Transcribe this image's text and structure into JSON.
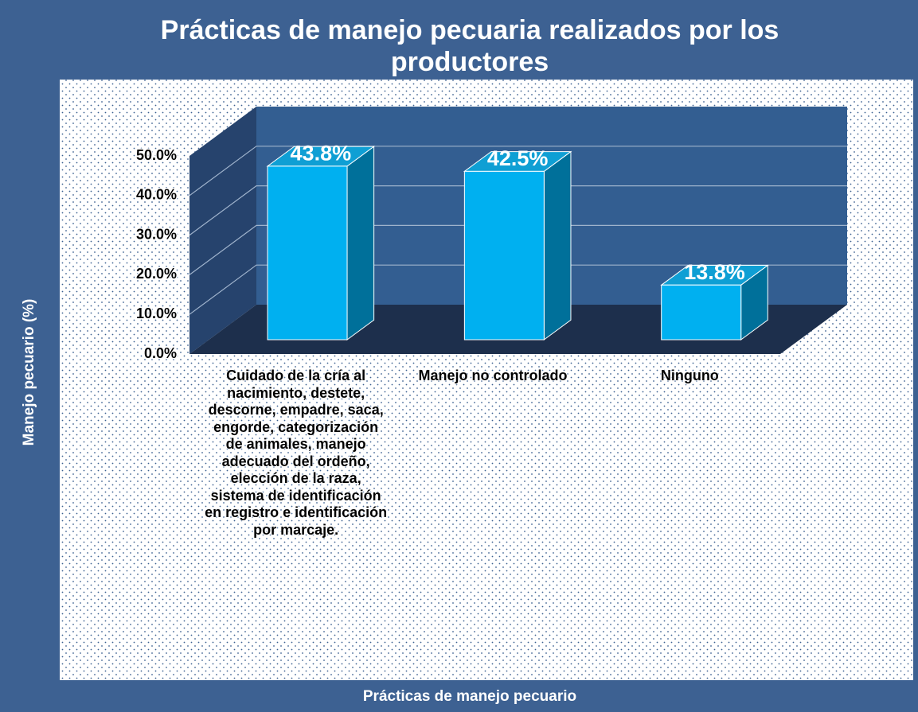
{
  "chart_data": {
    "type": "bar3d",
    "title": "Prácticas de manejo pecuaria realizados por los productores",
    "x_label": "Prácticas de manejo pecuario",
    "y_label": "Manejo pecuario (%)",
    "categories": [
      "Cuidado de la cría al nacimiento, destete, descorne, empadre, saca, engorde, categorización de animales, manejo adecuado del ordeño, elección de la raza, sistema de identificación en registro e identificación por marcaje.",
      "Manejo no controlado",
      "Ninguno"
    ],
    "values": [
      43.8,
      42.5,
      13.8
    ],
    "value_labels": [
      "43.8%",
      "42.5%",
      "13.8%"
    ],
    "color": "#00b0f0",
    "ylim": [
      0,
      50
    ],
    "yticks": [
      {
        "value": 0,
        "label": "0.0%"
      },
      {
        "value": 10,
        "label": "10.0%"
      },
      {
        "value": 20,
        "label": "20.0%"
      },
      {
        "value": 30,
        "label": "30.0%"
      },
      {
        "value": 40,
        "label": "40.0%"
      },
      {
        "value": 50,
        "label": "50.0%"
      }
    ],
    "grid": true
  }
}
